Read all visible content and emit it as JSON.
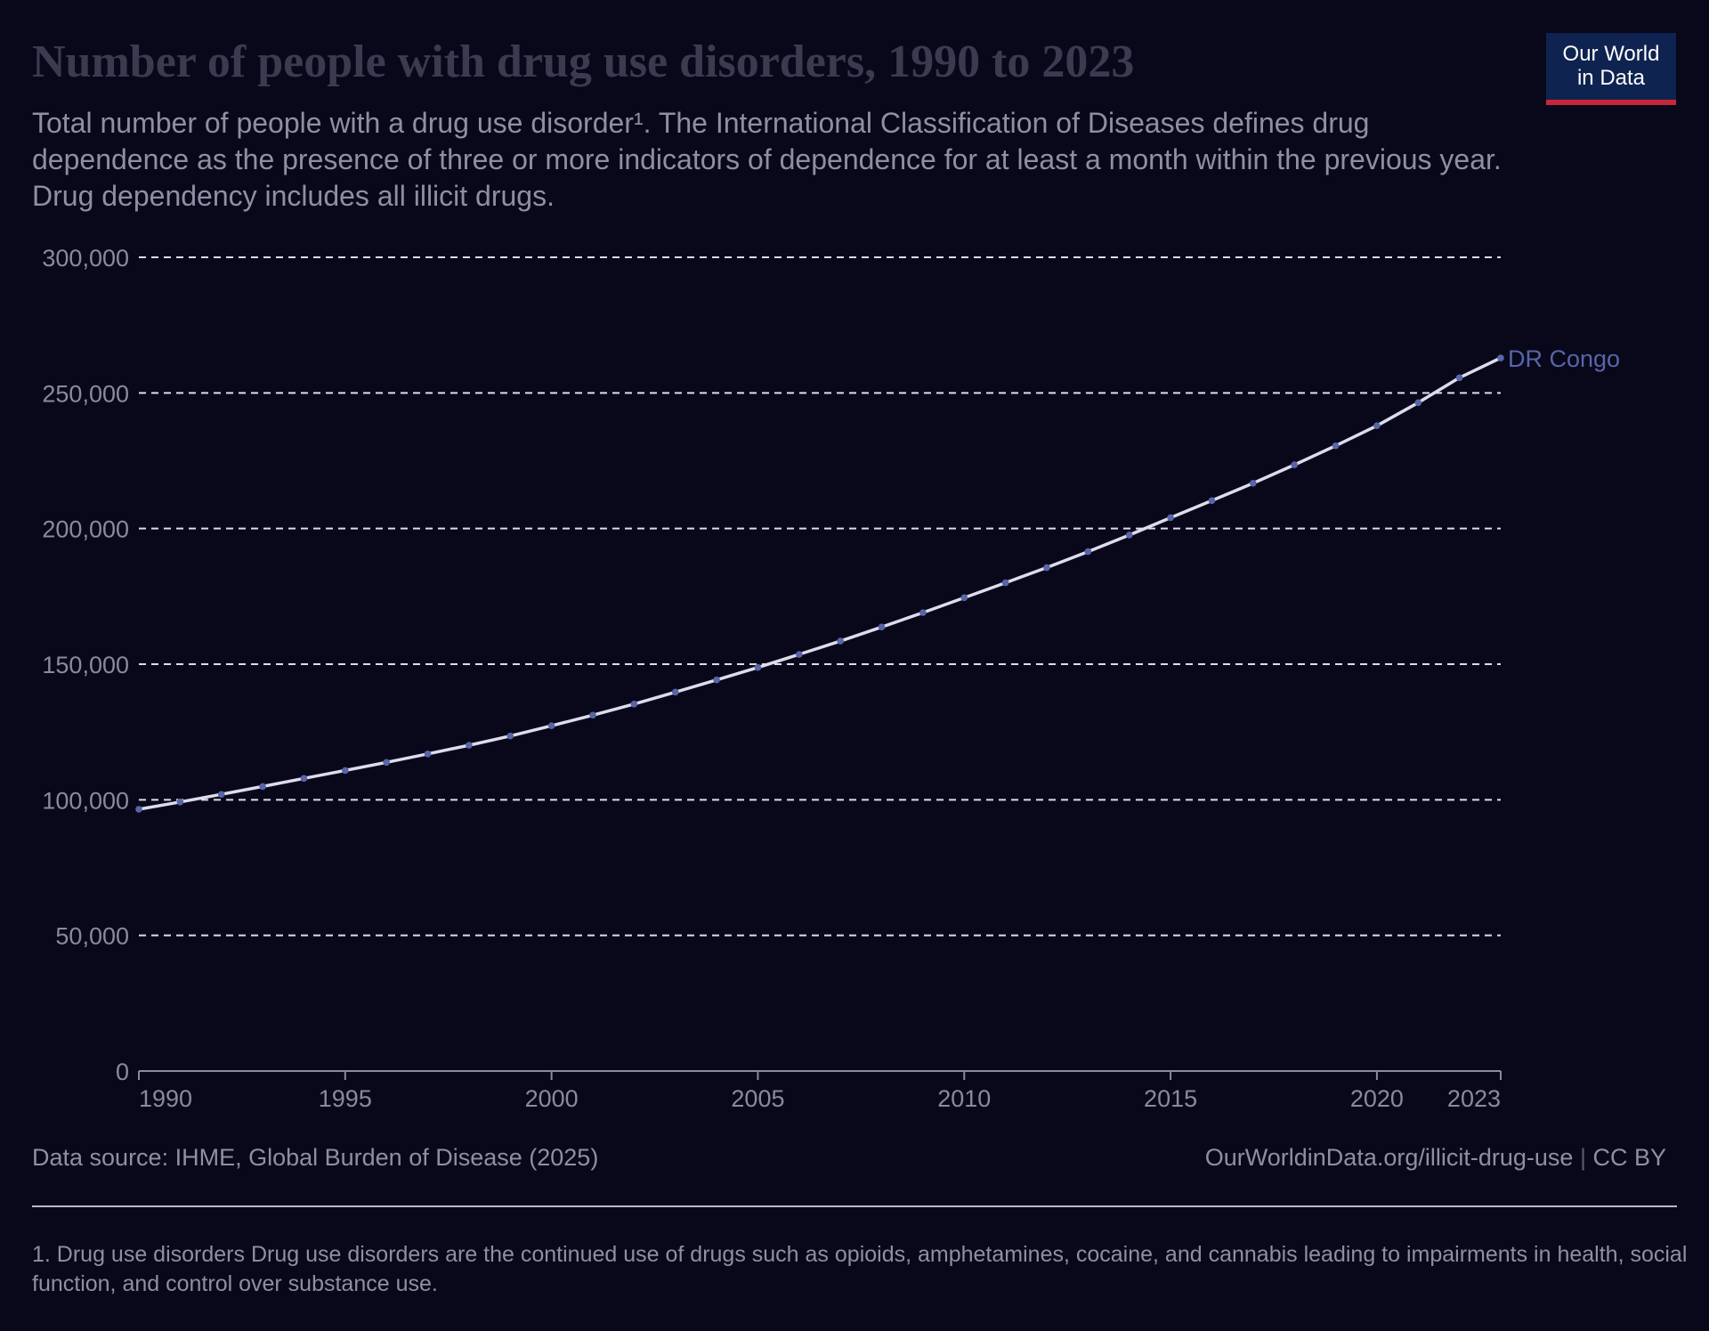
{
  "header": {
    "title": "Number of people with drug use disorders, 1990 to 2023",
    "subtitle": "Total number of people with a drug use disorder¹. The International Classification of Diseases defines drug dependence as the presence of three or more indicators of dependence for at least a month within the previous year. Drug dependency includes all illicit drugs."
  },
  "logo": {
    "line1": "Our World",
    "line2": "in Data",
    "bg_color": "#0f2350",
    "accent_color": "#c8263a"
  },
  "footer": {
    "source": "Data source: IHME, Global Burden of Disease (2025)",
    "url": "OurWorldinData.org/illicit-drug-use",
    "separator": "|",
    "license": "CC BY",
    "footnote": "1. Drug use disorders Drug use disorders are the continued use of drugs such as opioids, amphetamines, cocaine, and cannabis leading to impairments in health, social function, and control over substance use."
  },
  "chart_data": {
    "type": "line",
    "title": "Number of people with drug use disorders, 1990 to 2023",
    "xlabel": "",
    "ylabel": "",
    "xlim": [
      1990,
      2023
    ],
    "ylim": [
      0,
      300000
    ],
    "x_ticks": [
      1990,
      1995,
      2000,
      2005,
      2010,
      2015,
      2020,
      2023
    ],
    "x_tick_labels": [
      "1990",
      "1995",
      "2000",
      "2005",
      "2010",
      "2015",
      "2020",
      "2023"
    ],
    "y_ticks": [
      0,
      50000,
      100000,
      150000,
      200000,
      250000,
      300000
    ],
    "y_tick_labels": [
      "0",
      "50,000",
      "100,000",
      "150,000",
      "200,000",
      "250,000",
      "300,000"
    ],
    "grid": "horizontal-dashed",
    "legend": "inline-end-label",
    "line_color": "#dcdcec",
    "marker_color": "#5865a8",
    "series": [
      {
        "name": "DR Congo",
        "x": [
          1990,
          1991,
          1992,
          1993,
          1994,
          1995,
          1996,
          1997,
          1998,
          1999,
          2000,
          2001,
          2002,
          2003,
          2004,
          2005,
          2006,
          2007,
          2008,
          2009,
          2010,
          2011,
          2012,
          2013,
          2014,
          2015,
          2016,
          2017,
          2018,
          2019,
          2020,
          2021,
          2022,
          2023
        ],
        "values": [
          96500,
          99200,
          102000,
          104900,
          107900,
          110800,
          113800,
          116900,
          120100,
          123500,
          127300,
          131200,
          135300,
          139700,
          144200,
          148800,
          153600,
          158500,
          163700,
          169000,
          174500,
          180000,
          185600,
          191500,
          197600,
          204000,
          210300,
          216700,
          223500,
          230500,
          237900,
          246400,
          255600,
          262900
        ]
      }
    ]
  }
}
